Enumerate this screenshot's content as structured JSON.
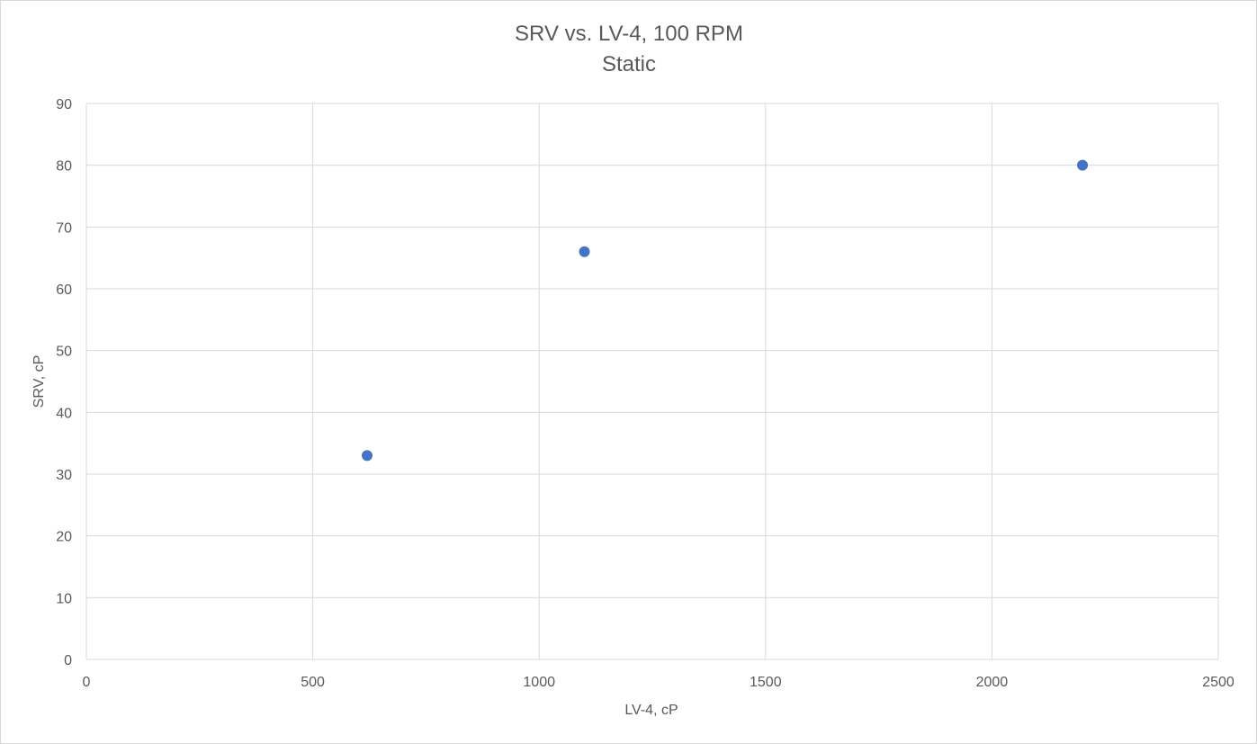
{
  "chart_data": {
    "type": "scatter",
    "title": "SRV vs. LV-4, 100 RPM",
    "subtitle": "Static",
    "xlabel": "LV-4, cP",
    "ylabel": "SRV, cP",
    "xlim": [
      0,
      2500
    ],
    "ylim": [
      0,
      90
    ],
    "x_ticks": [
      0,
      500,
      1000,
      1500,
      2000,
      2500
    ],
    "y_ticks": [
      0,
      10,
      20,
      30,
      40,
      50,
      60,
      70,
      80,
      90
    ],
    "grid": true,
    "legend": "none",
    "series": [
      {
        "color": "#4472c4",
        "points": [
          {
            "x": 620,
            "y": 33
          },
          {
            "x": 1100,
            "y": 66
          },
          {
            "x": 2200,
            "y": 80
          }
        ]
      }
    ]
  }
}
